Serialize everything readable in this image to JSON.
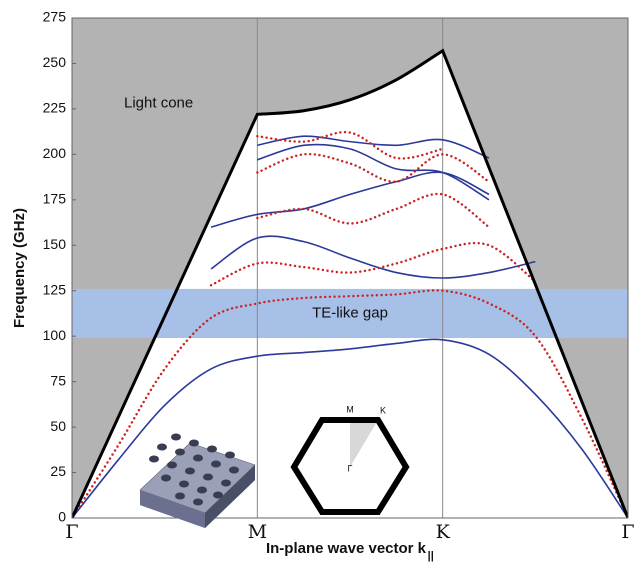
{
  "chart_data": {
    "type": "line",
    "y_label": "Frequency (GHz)",
    "x_label": "In-plane wave vector k",
    "x_label_subscript": "||",
    "xlim": [
      0,
      3
    ],
    "ylim": [
      0,
      275
    ],
    "xticks": [
      {
        "value": 0,
        "label": "Γ"
      },
      {
        "value": 1,
        "label": "M"
      },
      {
        "value": 2,
        "label": "K"
      },
      {
        "value": 3,
        "label": "Γ"
      }
    ],
    "yticks": [
      0,
      25,
      50,
      75,
      100,
      125,
      150,
      175,
      200,
      225,
      250,
      275
    ],
    "xgrid": true,
    "light_cone": {
      "label": "Light cone",
      "color": "#000000",
      "shade": "#b3b3b3",
      "x": [
        0,
        1,
        1.25,
        1.5,
        1.75,
        2,
        3
      ],
      "values": [
        0,
        222,
        224,
        230,
        241,
        257,
        0
      ]
    },
    "gap": {
      "label": "TE-like gap",
      "range": [
        99,
        126
      ],
      "color": "#a7c0e8"
    },
    "inset_labels": [
      "M",
      "K",
      "Γ"
    ],
    "x": [
      0,
      0.25,
      0.5,
      0.75,
      1,
      1.25,
      1.5,
      1.75,
      2,
      2.25,
      2.5,
      2.75,
      3
    ],
    "series": [
      {
        "color": "#2b3a9a",
        "style": "solid",
        "values": [
          0,
          32,
          62,
          82,
          89,
          91,
          93,
          96,
          98,
          90,
          68,
          38,
          0
        ]
      },
      {
        "color": "#2b3a9a",
        "style": "solid",
        "values": [
          null,
          null,
          null,
          137,
          154,
          152,
          143,
          135,
          132,
          135,
          141,
          null,
          null
        ]
      },
      {
        "color": "#2b3a9a",
        "style": "solid",
        "values": [
          null,
          null,
          null,
          160,
          167,
          170,
          178,
          185,
          190,
          178,
          null,
          null,
          null
        ]
      },
      {
        "color": "#2b3a9a",
        "style": "solid",
        "values": [
          null,
          null,
          null,
          null,
          197,
          205,
          203,
          192,
          190,
          175,
          null,
          null,
          null
        ]
      },
      {
        "color": "#2b3a9a",
        "style": "solid",
        "values": [
          null,
          null,
          null,
          null,
          205,
          210,
          207,
          205,
          208,
          198,
          null,
          null,
          null
        ]
      },
      {
        "color": "#cc2222",
        "style": "dotted",
        "values": [
          0,
          40,
          82,
          110,
          118,
          121,
          122,
          123,
          125,
          118,
          100,
          55,
          0
        ]
      },
      {
        "color": "#cc2222",
        "style": "dotted",
        "values": [
          null,
          null,
          null,
          128,
          140,
          138,
          135,
          140,
          148,
          150,
          130,
          null,
          null
        ]
      },
      {
        "color": "#cc2222",
        "style": "dotted",
        "values": [
          null,
          null,
          null,
          null,
          165,
          170,
          162,
          170,
          178,
          160,
          null,
          null,
          null
        ]
      },
      {
        "color": "#cc2222",
        "style": "dotted",
        "values": [
          null,
          null,
          null,
          null,
          190,
          200,
          195,
          185,
          200,
          185,
          null,
          null,
          null
        ]
      },
      {
        "color": "#cc2222",
        "style": "dotted",
        "values": [
          null,
          null,
          null,
          null,
          210,
          207,
          212,
          198,
          203,
          null,
          null,
          null,
          null
        ]
      }
    ]
  }
}
